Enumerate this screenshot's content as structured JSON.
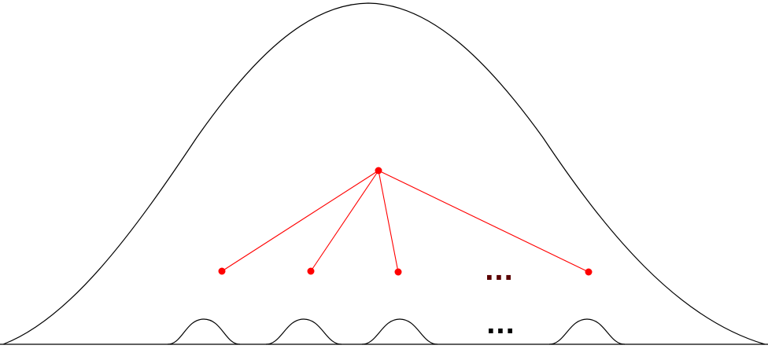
{
  "diagram": {
    "colors": {
      "outline": "#000000",
      "tree": "#ff0000",
      "ellipsis_upper": "#5a0000",
      "ellipsis_lower": "#000000"
    },
    "large_curve": {
      "shape": "bell-curve"
    },
    "tree": {
      "root": {
        "name": "root-node"
      },
      "children": [
        {
          "name": "child-node-1"
        },
        {
          "name": "child-node-2"
        },
        {
          "name": "child-node-3"
        },
        {
          "name": "child-node-4"
        }
      ],
      "ellipsis": "..."
    },
    "small_curves": {
      "count": 4,
      "ellipsis": "..."
    }
  }
}
